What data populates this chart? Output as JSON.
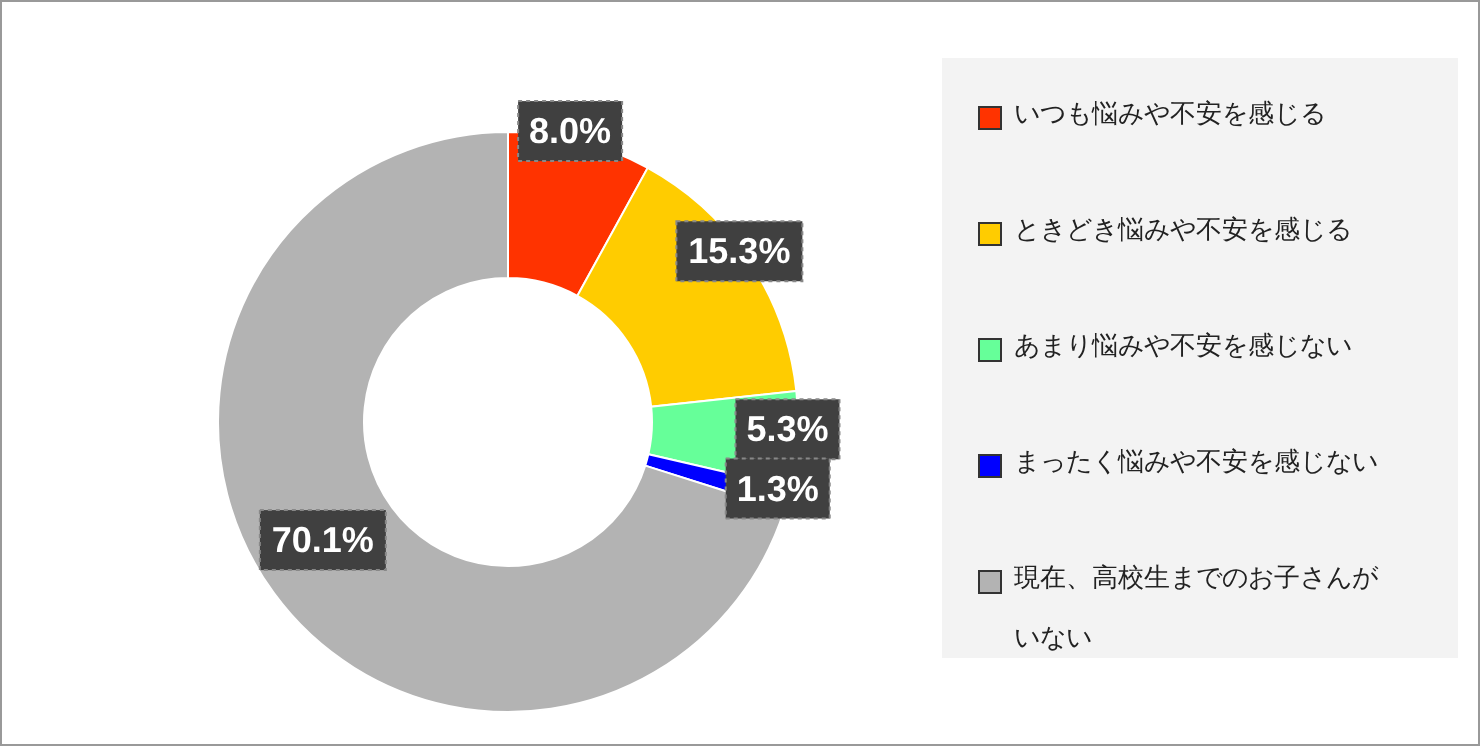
{
  "chart_data": {
    "type": "donut",
    "categories": [
      "いつも悩みや不安を感じる",
      "ときどき悩みや不安を感じる",
      "あまり悩みや不安を感じない",
      "まったく悩みや不安を感じない",
      "現在、高校生までのお子さんがいない"
    ],
    "values": [
      8.0,
      15.3,
      5.3,
      1.3,
      70.1
    ],
    "colors": [
      "#ff3300",
      "#ffcc00",
      "#66ff99",
      "#0000ff",
      "#b3b3b3"
    ],
    "value_labels": [
      "8.0%",
      "15.3%",
      "5.3%",
      "1.3%",
      "70.1%"
    ],
    "legend": "right"
  }
}
